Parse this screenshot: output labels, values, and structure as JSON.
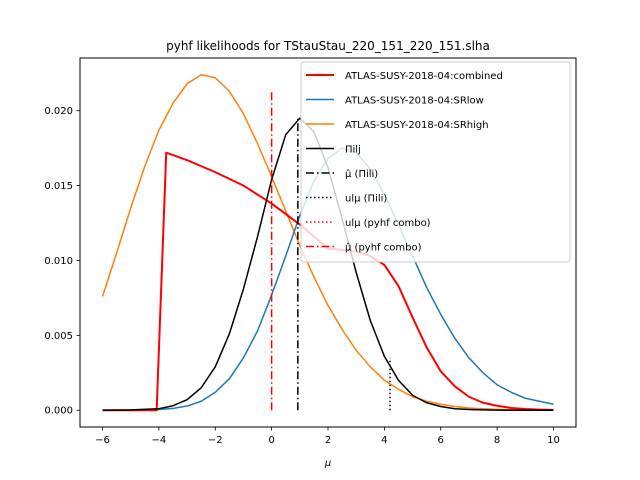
{
  "chart_data": {
    "type": "line",
    "title": "pyhf likelihoods for TStauStau_220_151_220_151.slha",
    "xlabel": "μ",
    "ylabel": "",
    "xlim": [
      -6.8,
      10.8
    ],
    "ylim": [
      -0.00112,
      0.02352
    ],
    "x_ticks": [
      -6,
      -4,
      -2,
      0,
      2,
      4,
      6,
      8,
      10
    ],
    "x_tick_labels": [
      "−6",
      "−4",
      "−2",
      "0",
      "2",
      "4",
      "6",
      "8",
      "10"
    ],
    "y_ticks": [
      0.0,
      0.005,
      0.01,
      0.015,
      0.02
    ],
    "y_tick_labels": [
      "0.000",
      "0.005",
      "0.010",
      "0.015",
      "0.020"
    ],
    "grid": false,
    "legend_position": "top-right",
    "series": [
      {
        "name": "ATLAS-SUSY-2018-04:combined",
        "color": "#ff0000",
        "width": 2,
        "dash": "solid",
        "x": [
          -6,
          -4.08,
          -3.74,
          -3,
          -2,
          -1,
          0,
          0.5,
          1,
          1.5,
          2,
          2.5,
          3,
          3.5,
          4,
          4.5,
          5,
          5.5,
          6,
          6.5,
          7,
          7.5,
          8,
          8.5,
          9,
          9.5,
          10
        ],
        "y": [
          0,
          0,
          0.0172,
          0.0167,
          0.0159,
          0.015,
          0.0138,
          0.0131,
          0.0124,
          0.0116,
          0.0108,
          0.0107,
          0.0106,
          0.0103,
          0.0097,
          0.0083,
          0.0062,
          0.0042,
          0.0026,
          0.0016,
          0.0009,
          0.0005,
          0.0003,
          0.00015,
          8e-05,
          4e-05,
          2e-05
        ]
      },
      {
        "name": "ATLAS-SUSY-2018-04:SRlow",
        "color": "#1f77b4",
        "width": 1.5,
        "dash": "solid",
        "x": [
          -6,
          -5,
          -4,
          -3.5,
          -3,
          -2.5,
          -2,
          -1.5,
          -1,
          -0.5,
          0,
          0.5,
          1,
          1.5,
          2,
          2.5,
          3,
          3.5,
          4,
          4.5,
          5,
          5.5,
          6,
          6.5,
          7,
          7.5,
          8,
          8.5,
          9,
          9.5,
          10
        ],
        "y": [
          0,
          0,
          5e-05,
          0.00012,
          0.00028,
          0.0006,
          0.0012,
          0.0021,
          0.0035,
          0.0053,
          0.0077,
          0.0103,
          0.013,
          0.0153,
          0.0168,
          0.0175,
          0.0172,
          0.0161,
          0.0144,
          0.0124,
          0.0103,
          0.0082,
          0.0064,
          0.0048,
          0.0035,
          0.0025,
          0.0017,
          0.0012,
          0.0008,
          0.0006,
          0.0004
        ]
      },
      {
        "name": "ATLAS-SUSY-2018-04:SRhigh",
        "color": "#ff7f0e",
        "width": 1.5,
        "dash": "solid",
        "x": [
          -6,
          -5.5,
          -5,
          -4.5,
          -4,
          -3.5,
          -3,
          -2.5,
          -2,
          -1.5,
          -1,
          -0.5,
          0,
          0.5,
          1,
          1.5,
          2,
          2.5,
          3,
          3.5,
          4,
          4.5,
          5,
          5.5,
          6,
          6.5,
          7,
          7.5,
          8,
          9,
          10
        ],
        "y": [
          0.0076,
          0.0105,
          0.0135,
          0.0163,
          0.0187,
          0.0205,
          0.0218,
          0.0224,
          0.0222,
          0.0213,
          0.0198,
          0.0178,
          0.0156,
          0.0133,
          0.011,
          0.0089,
          0.007,
          0.0054,
          0.004,
          0.0029,
          0.002,
          0.0014,
          0.0009,
          0.0006,
          0.0004,
          0.00025,
          0.00015,
          0.0001,
          6e-05,
          2e-05,
          5e-06
        ]
      },
      {
        "name": "Π_i l_i",
        "color": "#000000",
        "width": 1.5,
        "dash": "solid",
        "x": [
          -6,
          -5,
          -4,
          -3.5,
          -3,
          -2.5,
          -2,
          -1.5,
          -1,
          -0.5,
          0,
          0.5,
          1,
          1.5,
          2,
          2.5,
          3,
          3.5,
          4,
          4.5,
          5,
          5.5,
          6,
          6.5,
          7,
          7.5,
          8,
          8.5,
          9,
          9.5,
          10
        ],
        "y": [
          0,
          2e-05,
          0.0001,
          0.0003,
          0.0007,
          0.0015,
          0.0029,
          0.0051,
          0.0081,
          0.0116,
          0.0154,
          0.0184,
          0.0195,
          0.0186,
          0.0162,
          0.0128,
          0.0092,
          0.006,
          0.0036,
          0.002,
          0.001,
          0.0005,
          0.00025,
          0.0001,
          5e-05,
          2e-05,
          1e-05,
          0,
          0,
          0,
          0
        ]
      }
    ],
    "vlines": [
      {
        "name": "μ̂ (Π_i l_i)",
        "x": 0.93,
        "ymin": 0.0,
        "ymax": 0.0195,
        "color": "#000000",
        "width": 1.5,
        "dash": "8,3,1.5,3"
      },
      {
        "name": "ul_μ (Π_i l_i)",
        "x": 4.2,
        "ymin": 0.0,
        "ymax": 0.0035,
        "color": "#000000",
        "width": 1.5,
        "dash": "1.5,2.5"
      },
      {
        "name": "ul_μ (pyhf combo)",
        "x": 4.2,
        "ymin": 0.0,
        "ymax": 0.0,
        "color": "#ff0000",
        "width": 1.5,
        "dash": "1.5,2.5"
      },
      {
        "name": "μ̂ (pyhf combo)",
        "x": 0.0,
        "ymin": 0.0,
        "ymax": 0.0213,
        "color": "#ff0000",
        "width": 1.5,
        "dash": "8,3,1.5,3"
      }
    ],
    "legend": [
      {
        "label": "ATLAS-SUSY-2018-04:combined",
        "color": "#ff0000",
        "width": 2,
        "dash": "solid"
      },
      {
        "label": "ATLAS-SUSY-2018-04:SRlow",
        "color": "#1f77b4",
        "width": 1.5,
        "dash": "solid"
      },
      {
        "label": "ATLAS-SUSY-2018-04:SRhigh",
        "color": "#ff7f0e",
        "width": 1.5,
        "dash": "solid"
      },
      {
        "label": "Πilj",
        "color": "#000000",
        "width": 1.5,
        "dash": "solid"
      },
      {
        "label": "μ̂ (Πili)",
        "color": "#000000",
        "width": 1.5,
        "dash": "8,3,1.5,3"
      },
      {
        "label": "ulμ (Πili)",
        "color": "#000000",
        "width": 1.5,
        "dash": "1.5,2.5"
      },
      {
        "label": "ulμ (pyhf combo)",
        "color": "#ff0000",
        "width": 1.5,
        "dash": "1.5,2.5"
      },
      {
        "label": "μ̂ (pyhf combo)",
        "color": "#ff0000",
        "width": 1.5,
        "dash": "8,3,1.5,3"
      }
    ]
  }
}
